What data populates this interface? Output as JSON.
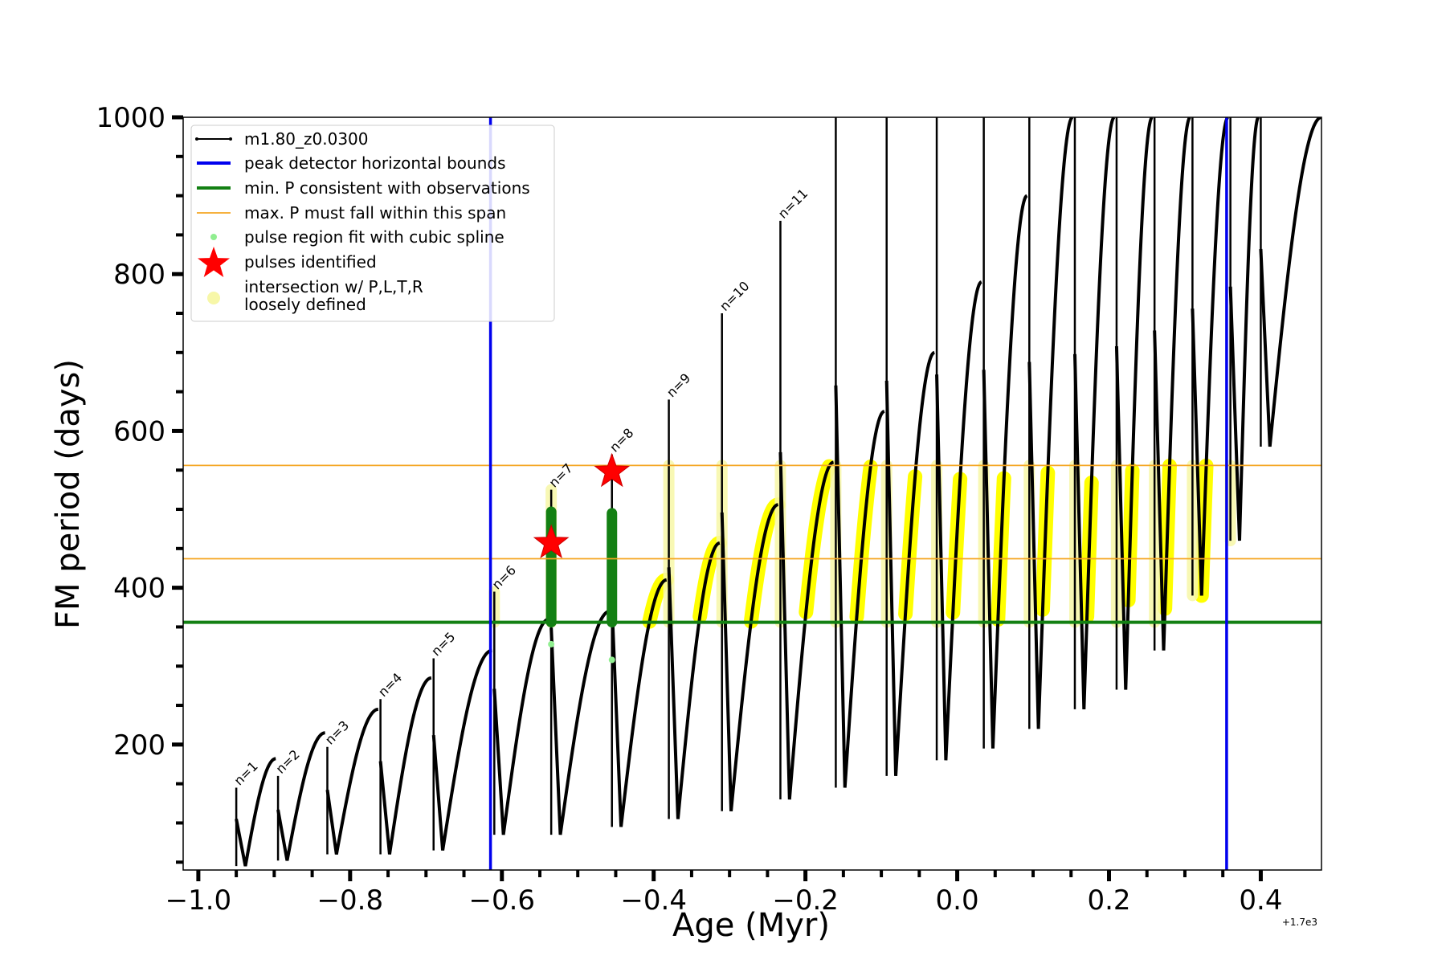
{
  "chart_data": {
    "type": "line",
    "xlabel": "Age (Myr)",
    "ylabel": "FM period (days)",
    "x_offset_label": "+1.7e3",
    "xlim": [
      -1.02,
      0.48
    ],
    "ylim": [
      40,
      1000
    ],
    "x_ticks": [
      -1.0,
      -0.8,
      -0.6,
      -0.4,
      -0.2,
      0.0,
      0.2,
      0.4
    ],
    "x_tick_labels": [
      "−1.0",
      "−0.8",
      "−0.6",
      "−0.4",
      "−0.2",
      "0.0",
      "0.2",
      "0.4"
    ],
    "y_ticks": [
      200,
      400,
      600,
      800,
      1000
    ],
    "y_tick_labels": [
      "200",
      "400",
      "600",
      "800",
      "1000"
    ],
    "grid": false,
    "legend_position": "top-left",
    "legend": [
      {
        "label": "m1.80_z0.0300",
        "marker": "black-line-dots"
      },
      {
        "label": "peak detector horizontal bounds",
        "marker": "blue-line"
      },
      {
        "label": "min. P consistent with observations",
        "marker": "green-line"
      },
      {
        "label": "max. P must fall within this span",
        "marker": "orange-line"
      },
      {
        "label": "pulse region fit with cubic spline",
        "marker": "lightgreen-dot"
      },
      {
        "label": "pulses identified",
        "marker": "red-star"
      },
      {
        "label": "intersection w/ P,L,T,R",
        "label2": "loosely defined",
        "marker": "yellow-circle"
      }
    ],
    "colors": {
      "track": "#000000",
      "bounds": "#0000ee",
      "min_p": "#138013",
      "max_p": "#f5a623",
      "spline": "#90ee90",
      "star": "#ff0000",
      "fit": "#ffff00",
      "loose": "#f7f7a8"
    },
    "vertical_bounds": [
      -0.615,
      0.355
    ],
    "min_p_line": 356,
    "max_p_span": [
      437,
      556
    ],
    "pulses": [
      {
        "label": "n=1",
        "x": -0.95,
        "p_min": 45,
        "p_max": 160,
        "spike": 145
      },
      {
        "label": "n=2",
        "x": -0.895,
        "p_min": 52,
        "p_max": 182,
        "spike": 160
      },
      {
        "label": "n=3",
        "x": -0.83,
        "p_min": 60,
        "p_max": 215,
        "spike": 197
      },
      {
        "label": "n=4",
        "x": -0.76,
        "p_min": 60,
        "p_max": 245,
        "spike": 258
      },
      {
        "label": "n=5",
        "x": -0.69,
        "p_min": 65,
        "p_max": 285,
        "spike": 310
      },
      {
        "label": "n=6",
        "x": -0.61,
        "p_min": 85,
        "p_max": 320,
        "spike": 395
      },
      {
        "label": "n=7",
        "x": -0.535,
        "p_min": 85,
        "p_max": 360,
        "spike": 525
      },
      {
        "label": "n=8",
        "x": -0.455,
        "p_min": 95,
        "p_max": 370,
        "spike": 570
      },
      {
        "label": "n=9",
        "x": -0.38,
        "p_min": 105,
        "p_max": 410,
        "spike": 640
      },
      {
        "label": "n=10",
        "x": -0.31,
        "p_min": 115,
        "p_max": 457,
        "spike": 750
      },
      {
        "label": "n=11",
        "x": -0.233,
        "p_min": 130,
        "p_max": 506,
        "spike": 868
      },
      {
        "label": "",
        "x": -0.16,
        "p_min": 145,
        "p_max": 560,
        "spike": 1000
      },
      {
        "label": "",
        "x": -0.093,
        "p_min": 160,
        "p_max": 625,
        "spike": 1000
      },
      {
        "label": "",
        "x": -0.027,
        "p_min": 180,
        "p_max": 700,
        "spike": 1000
      },
      {
        "label": "",
        "x": 0.035,
        "p_min": 195,
        "p_max": 790,
        "spike": 1000
      },
      {
        "label": "",
        "x": 0.095,
        "p_min": 220,
        "p_max": 900,
        "spike": 1000
      },
      {
        "label": "",
        "x": 0.155,
        "p_min": 245,
        "p_max": 1000,
        "spike": 1000
      },
      {
        "label": "",
        "x": 0.21,
        "p_min": 270,
        "p_max": 1000,
        "spike": 1000
      },
      {
        "label": "",
        "x": 0.26,
        "p_min": 320,
        "p_max": 1000,
        "spike": 1000
      },
      {
        "label": "",
        "x": 0.31,
        "p_min": 390,
        "p_max": 1000,
        "spike": 1000
      },
      {
        "label": "",
        "x": 0.36,
        "p_min": 460,
        "p_max": 1000,
        "spike": 1000
      },
      {
        "label": "",
        "x": 0.4,
        "p_min": 580,
        "p_max": 1000,
        "spike": 1000
      }
    ],
    "stars": [
      {
        "x": -0.535,
        "y": 457
      },
      {
        "x": -0.455,
        "y": 548
      }
    ],
    "green_segments": [
      {
        "x": -0.535,
        "y0": 356,
        "y1": 497
      },
      {
        "x": -0.455,
        "y0": 356,
        "y1": 495
      }
    ],
    "spline_dots": [
      {
        "x": -0.535,
        "y": 328
      },
      {
        "x": -0.455,
        "y": 308
      }
    ]
  }
}
